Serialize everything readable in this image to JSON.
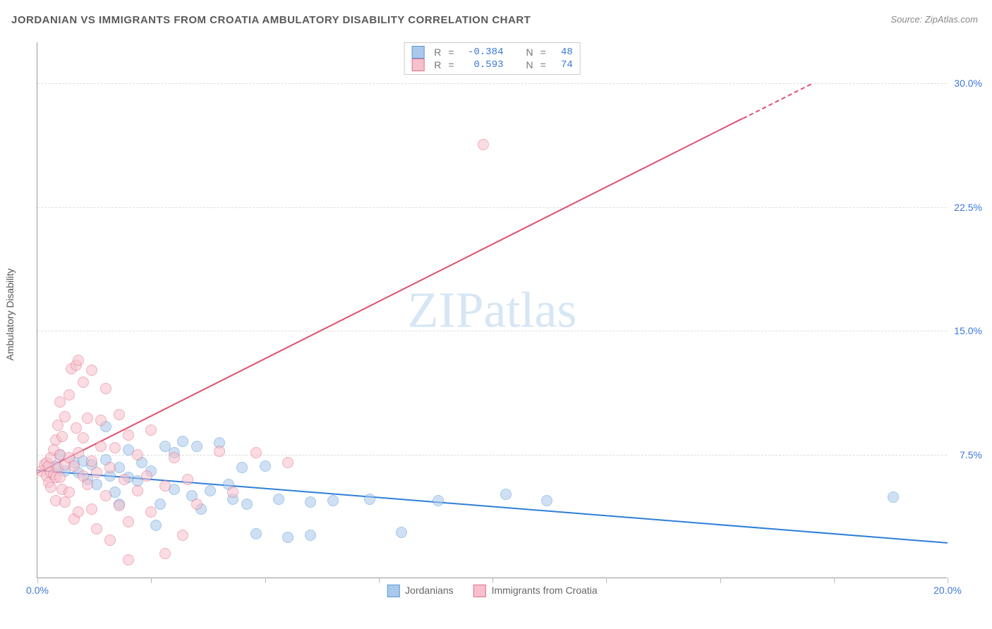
{
  "title": "JORDANIAN VS IMMIGRANTS FROM CROATIA AMBULATORY DISABILITY CORRELATION CHART",
  "source_label": "Source: ",
  "source_value": "ZipAtlas.com",
  "ylabel": "Ambulatory Disability",
  "watermark_bold": "ZIP",
  "watermark_light": "atlas",
  "chart": {
    "type": "scatter",
    "xlim": [
      0,
      20
    ],
    "ylim": [
      0,
      32.5
    ],
    "xticks": [
      0,
      2.5,
      5,
      7.5,
      10,
      12.5,
      15,
      17.5,
      20
    ],
    "xtick_labels": {
      "0": "0.0%",
      "20": "20.0%"
    },
    "yticks": [
      7.5,
      15.0,
      22.5,
      30.0
    ],
    "ytick_labels": [
      "7.5%",
      "15.0%",
      "22.5%",
      "30.0%"
    ],
    "plot_bg": "#ffffff",
    "grid_color": "#dddddd",
    "axis_color": "#999999",
    "tick_label_color": "#3b78d8",
    "title_color": "#5a5a5a",
    "title_fontsize": 15,
    "label_fontsize": 14,
    "marker_radius": 8,
    "marker_opacity": 0.55,
    "series": [
      {
        "name": "Jordanians",
        "color_fill": "#a9c8ec",
        "color_stroke": "#5b9bd5",
        "R": "-0.384",
        "N": "48",
        "trend": {
          "x0": 0,
          "y0": 6.6,
          "x1": 20,
          "y1": 2.2,
          "color": "#2f7ed8",
          "width": 2,
          "dashed_after_x": 20
        },
        "points": [
          [
            0.4,
            6.8
          ],
          [
            0.6,
            6.5
          ],
          [
            0.8,
            7.0
          ],
          [
            0.9,
            6.4
          ],
          [
            1.0,
            7.1
          ],
          [
            1.1,
            6.0
          ],
          [
            1.2,
            6.9
          ],
          [
            1.3,
            5.7
          ],
          [
            1.5,
            7.2
          ],
          [
            1.5,
            9.2
          ],
          [
            1.6,
            6.2
          ],
          [
            1.7,
            5.2
          ],
          [
            1.8,
            6.7
          ],
          [
            1.8,
            4.5
          ],
          [
            2.0,
            6.1
          ],
          [
            2.0,
            7.8
          ],
          [
            2.2,
            5.9
          ],
          [
            2.3,
            7.0
          ],
          [
            2.5,
            6.5
          ],
          [
            2.6,
            3.2
          ],
          [
            2.7,
            4.5
          ],
          [
            2.8,
            8.0
          ],
          [
            3.0,
            5.4
          ],
          [
            3.0,
            7.6
          ],
          [
            3.2,
            8.3
          ],
          [
            3.4,
            5.0
          ],
          [
            3.5,
            8.0
          ],
          [
            3.6,
            4.2
          ],
          [
            3.8,
            5.3
          ],
          [
            4.0,
            8.2
          ],
          [
            4.2,
            5.7
          ],
          [
            4.3,
            4.8
          ],
          [
            4.5,
            6.7
          ],
          [
            4.6,
            4.5
          ],
          [
            4.8,
            2.7
          ],
          [
            5.0,
            6.8
          ],
          [
            5.3,
            4.8
          ],
          [
            5.5,
            2.5
          ],
          [
            6.0,
            4.6
          ],
          [
            6.0,
            2.6
          ],
          [
            6.5,
            4.7
          ],
          [
            7.3,
            4.8
          ],
          [
            8.0,
            2.8
          ],
          [
            8.8,
            4.7
          ],
          [
            10.3,
            5.1
          ],
          [
            11.2,
            4.7
          ],
          [
            18.8,
            4.9
          ],
          [
            0.5,
            7.5
          ]
        ]
      },
      {
        "name": "Immigrants from Croatia",
        "color_fill": "#f6c1cc",
        "color_stroke": "#e36f8a",
        "R": "0.593",
        "N": "74",
        "trend": {
          "x0": 0,
          "y0": 6.4,
          "x1": 17.0,
          "y1": 30.0,
          "color": "#e04f70",
          "width": 2,
          "dashed_after_x": 15.5
        },
        "points": [
          [
            0.1,
            6.5
          ],
          [
            0.15,
            6.9
          ],
          [
            0.2,
            6.2
          ],
          [
            0.2,
            7.0
          ],
          [
            0.25,
            5.8
          ],
          [
            0.25,
            6.8
          ],
          [
            0.3,
            6.4
          ],
          [
            0.3,
            7.3
          ],
          [
            0.3,
            5.5
          ],
          [
            0.35,
            6.3
          ],
          [
            0.35,
            7.8
          ],
          [
            0.4,
            6.1
          ],
          [
            0.4,
            8.4
          ],
          [
            0.4,
            4.7
          ],
          [
            0.45,
            6.7
          ],
          [
            0.45,
            9.3
          ],
          [
            0.5,
            6.1
          ],
          [
            0.5,
            7.5
          ],
          [
            0.5,
            10.7
          ],
          [
            0.55,
            5.4
          ],
          [
            0.55,
            8.6
          ],
          [
            0.6,
            6.9
          ],
          [
            0.6,
            4.6
          ],
          [
            0.6,
            9.8
          ],
          [
            0.7,
            11.1
          ],
          [
            0.7,
            5.2
          ],
          [
            0.7,
            7.3
          ],
          [
            0.75,
            12.7
          ],
          [
            0.8,
            6.8
          ],
          [
            0.8,
            3.6
          ],
          [
            0.85,
            9.1
          ],
          [
            0.85,
            12.9
          ],
          [
            0.9,
            4.0
          ],
          [
            0.9,
            7.6
          ],
          [
            0.9,
            13.2
          ],
          [
            1.0,
            6.2
          ],
          [
            1.0,
            11.9
          ],
          [
            1.0,
            8.5
          ],
          [
            1.1,
            5.7
          ],
          [
            1.1,
            9.7
          ],
          [
            1.2,
            4.2
          ],
          [
            1.2,
            7.1
          ],
          [
            1.2,
            12.6
          ],
          [
            1.3,
            6.4
          ],
          [
            1.3,
            3.0
          ],
          [
            1.4,
            8.0
          ],
          [
            1.4,
            9.6
          ],
          [
            1.5,
            5.0
          ],
          [
            1.5,
            11.5
          ],
          [
            1.6,
            6.7
          ],
          [
            1.6,
            2.3
          ],
          [
            1.7,
            7.9
          ],
          [
            1.8,
            4.4
          ],
          [
            1.8,
            9.9
          ],
          [
            1.9,
            6.0
          ],
          [
            2.0,
            8.7
          ],
          [
            2.0,
            3.4
          ],
          [
            2.0,
            1.1
          ],
          [
            2.2,
            5.3
          ],
          [
            2.2,
            7.5
          ],
          [
            2.4,
            6.2
          ],
          [
            2.5,
            4.0
          ],
          [
            2.5,
            9.0
          ],
          [
            2.8,
            5.6
          ],
          [
            2.8,
            1.5
          ],
          [
            3.0,
            7.3
          ],
          [
            3.2,
            2.6
          ],
          [
            3.3,
            6.0
          ],
          [
            3.5,
            4.5
          ],
          [
            4.0,
            7.7
          ],
          [
            4.3,
            5.2
          ],
          [
            4.8,
            7.6
          ],
          [
            5.5,
            7.0
          ],
          [
            9.8,
            26.3
          ]
        ]
      }
    ],
    "stats_box": {
      "labels": {
        "R": "R",
        "N": "N",
        "eq": "="
      }
    },
    "legend_bottom": {
      "series1_label": "Jordanians",
      "series2_label": "Immigrants from Croatia"
    }
  }
}
